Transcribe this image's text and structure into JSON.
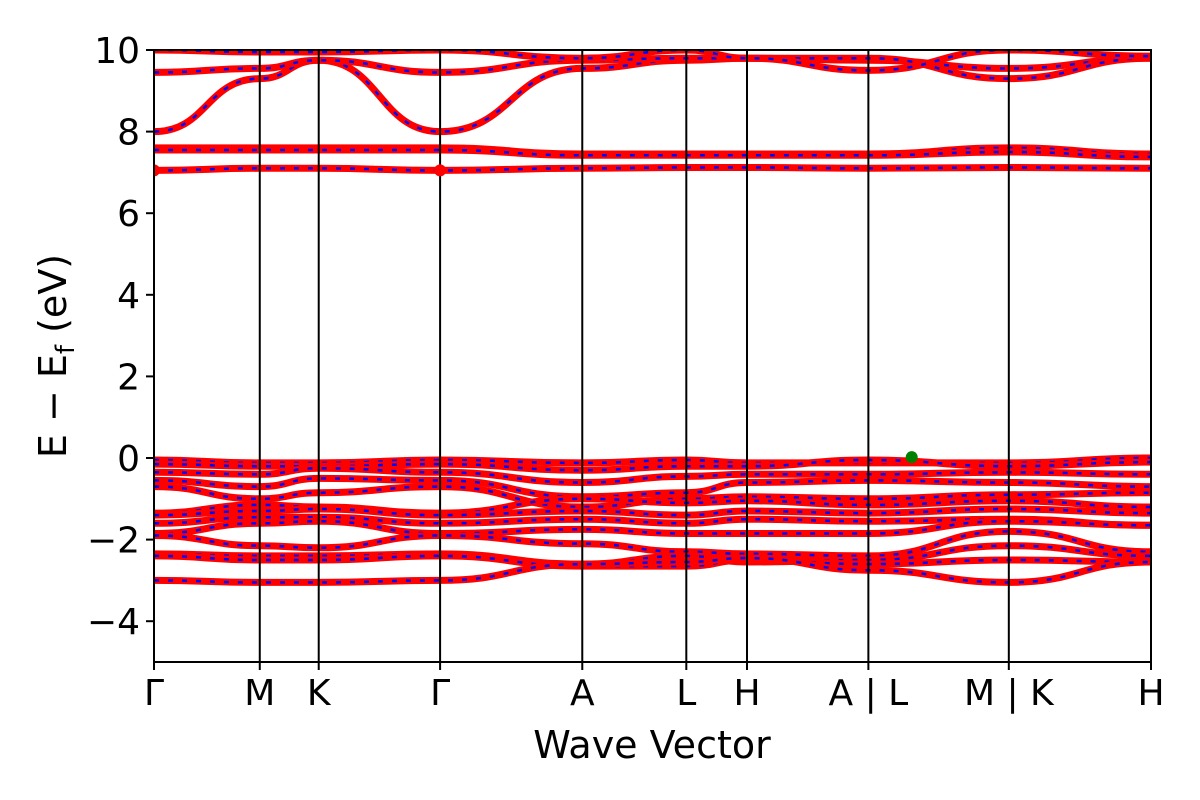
{
  "chart_data": {
    "type": "line",
    "xlabel": "Wave Vector",
    "ylabel_main": "E − E",
    "ylabel_sub": "f",
    "ylabel_unit": " (eV)",
    "ylim": [
      -5,
      10
    ],
    "yticks": [
      -4,
      -2,
      0,
      2,
      4,
      6,
      8,
      10
    ],
    "ytick_labels": [
      "−4",
      "−2",
      "0",
      "2",
      "4",
      "6",
      "8",
      "10"
    ],
    "xlim": [
      0,
      5.75
    ],
    "kpoints": [
      {
        "label": "Γ",
        "x": 0.0
      },
      {
        "label": "M",
        "x": 0.61
      },
      {
        "label": "K",
        "x": 0.95
      },
      {
        "label": "Γ",
        "x": 1.65
      },
      {
        "label": "A",
        "x": 2.47
      },
      {
        "label": "L",
        "x": 3.07
      },
      {
        "label": "H",
        "x": 3.42
      },
      {
        "label": "A | L",
        "x": 4.12
      },
      {
        "label": "M | K",
        "x": 4.93
      },
      {
        "label": "H",
        "x": 5.75
      }
    ],
    "line_colors": {
      "band_a": "#ff0000",
      "band_b": "#0000ff",
      "vline": "#000000"
    },
    "bands": [
      {
        "x": [
          0,
          0.61,
          0.95,
          1.65,
          2.47,
          3.07,
          3.42,
          4.12,
          4.93,
          5.75
        ],
        "y": [
          8.0,
          9.3,
          9.75,
          8.0,
          9.55,
          9.75,
          9.8,
          9.75,
          9.55,
          9.8
        ]
      },
      {
        "x": [
          0,
          0.61,
          0.95,
          1.65,
          2.47,
          3.07,
          3.42,
          4.12,
          4.93,
          5.75
        ],
        "y": [
          9.45,
          9.55,
          9.75,
          9.45,
          9.75,
          9.8,
          9.8,
          9.8,
          9.3,
          9.8
        ]
      },
      {
        "x": [
          0,
          0.61,
          0.95,
          1.65,
          2.47,
          3.07,
          3.42,
          4.12,
          4.93,
          5.75
        ],
        "y": [
          10.0,
          9.95,
          9.95,
          10.0,
          9.8,
          10.0,
          9.8,
          9.5,
          10.0,
          9.85
        ]
      },
      {
        "x": [
          0,
          0.61,
          0.95,
          1.65,
          2.47,
          3.07,
          3.42,
          4.12,
          4.93,
          5.75
        ],
        "y": [
          7.6,
          7.6,
          7.6,
          7.6,
          7.45,
          7.45,
          7.45,
          7.45,
          7.6,
          7.45
        ]
      },
      {
        "x": [
          0,
          0.61,
          0.95,
          1.65,
          2.47,
          3.07,
          3.42,
          4.12,
          4.93,
          5.75
        ],
        "y": [
          7.55,
          7.55,
          7.55,
          7.55,
          7.42,
          7.42,
          7.42,
          7.42,
          7.5,
          7.38
        ]
      },
      {
        "x": [
          0,
          0.61,
          0.95,
          1.65,
          2.47,
          3.07,
          3.42,
          4.12,
          4.93,
          5.75
        ],
        "y": [
          7.05,
          7.1,
          7.1,
          7.05,
          7.1,
          7.12,
          7.12,
          7.1,
          7.12,
          7.1
        ]
      },
      {
        "x": [
          0,
          0.61,
          0.95,
          1.65,
          2.47,
          3.07,
          3.42,
          4.12,
          4.93,
          5.75
        ],
        "y": [
          -0.05,
          -0.12,
          -0.12,
          -0.05,
          -0.12,
          -0.05,
          -0.12,
          -0.12,
          -0.12,
          0.0
        ]
      },
      {
        "x": [
          0,
          0.61,
          0.95,
          1.65,
          2.47,
          3.07,
          3.42,
          4.12,
          4.93,
          5.75
        ],
        "y": [
          -0.15,
          -0.2,
          -0.2,
          -0.15,
          -0.3,
          -0.2,
          -0.2,
          -0.05,
          -0.2,
          -0.1
        ]
      },
      {
        "x": [
          0,
          0.61,
          0.95,
          1.65,
          2.47,
          3.07,
          3.42,
          4.12,
          4.93,
          5.75
        ],
        "y": [
          -0.35,
          -0.4,
          -0.25,
          -0.35,
          -0.6,
          -0.45,
          -0.4,
          -0.4,
          -0.35,
          -0.4
        ]
      },
      {
        "x": [
          0,
          0.61,
          0.95,
          1.65,
          2.47,
          3.07,
          3.42,
          4.12,
          4.93,
          5.75
        ],
        "y": [
          -0.55,
          -0.7,
          -0.5,
          -0.55,
          -0.95,
          -0.85,
          -0.6,
          -0.55,
          -0.6,
          -0.7
        ]
      },
      {
        "x": [
          0,
          0.61,
          0.95,
          1.65,
          2.47,
          3.07,
          3.42,
          4.12,
          4.93,
          5.75
        ],
        "y": [
          -0.7,
          -1.0,
          -0.85,
          -0.7,
          -1.2,
          -1.0,
          -0.95,
          -1.0,
          -0.9,
          -0.85
        ]
      },
      {
        "x": [
          0,
          0.61,
          0.95,
          1.65,
          2.47,
          3.07,
          3.42,
          4.12,
          4.93,
          5.75
        ],
        "y": [
          -1.35,
          -1.15,
          -1.2,
          -1.35,
          -1.0,
          -1.1,
          -1.05,
          -1.15,
          -1.05,
          -1.2
        ]
      },
      {
        "x": [
          0,
          0.61,
          0.95,
          1.65,
          2.47,
          3.07,
          3.42,
          4.12,
          4.93,
          5.75
        ],
        "y": [
          -1.4,
          -1.3,
          -1.25,
          -1.4,
          -1.3,
          -1.4,
          -1.3,
          -1.35,
          -1.25,
          -1.35
        ]
      },
      {
        "x": [
          0,
          0.61,
          0.95,
          1.65,
          2.47,
          3.07,
          3.42,
          4.12,
          4.93,
          5.75
        ],
        "y": [
          -1.6,
          -1.45,
          -1.45,
          -1.6,
          -1.5,
          -1.6,
          -1.5,
          -1.55,
          -1.5,
          -1.65
        ]
      },
      {
        "x": [
          0,
          0.61,
          0.95,
          1.65,
          2.47,
          3.07,
          3.42,
          4.12,
          4.93,
          5.75
        ],
        "y": [
          -1.85,
          -1.6,
          -1.55,
          -1.85,
          -1.75,
          -1.85,
          -1.85,
          -1.85,
          -1.55,
          -1.65
        ]
      },
      {
        "x": [
          0,
          0.61,
          0.95,
          1.65,
          2.47,
          3.07,
          3.42,
          4.12,
          4.93,
          5.75
        ],
        "y": [
          -1.9,
          -2.15,
          -2.2,
          -1.9,
          -2.1,
          -2.3,
          -2.35,
          -2.4,
          -1.8,
          -2.3
        ]
      },
      {
        "x": [
          0,
          0.61,
          0.95,
          1.65,
          2.47,
          3.07,
          3.42,
          4.12,
          4.93,
          5.75
        ],
        "y": [
          -2.35,
          -2.4,
          -2.4,
          -2.35,
          -2.6,
          -2.4,
          -2.55,
          -2.5,
          -2.15,
          -2.4
        ]
      },
      {
        "x": [
          0,
          0.61,
          0.95,
          1.65,
          2.47,
          3.07,
          3.42,
          4.12,
          4.93,
          5.75
        ],
        "y": [
          -2.4,
          -2.5,
          -2.5,
          -2.4,
          -2.65,
          -2.65,
          -2.5,
          -2.6,
          -2.5,
          -2.55
        ]
      },
      {
        "x": [
          0,
          0.61,
          0.95,
          1.65,
          2.47,
          3.07,
          3.42,
          4.12,
          4.93,
          5.75
        ],
        "y": [
          -3.0,
          -3.05,
          -3.05,
          -3.0,
          -2.6,
          -2.55,
          -2.45,
          -2.75,
          -3.05,
          -2.55
        ]
      }
    ],
    "markers": [
      {
        "x": 0.0,
        "y": 7.05,
        "color": "#ff0000"
      },
      {
        "x": 1.65,
        "y": 7.05,
        "color": "#ff0000"
      },
      {
        "x": 4.37,
        "y": 0.02,
        "color": "#008000"
      }
    ]
  }
}
